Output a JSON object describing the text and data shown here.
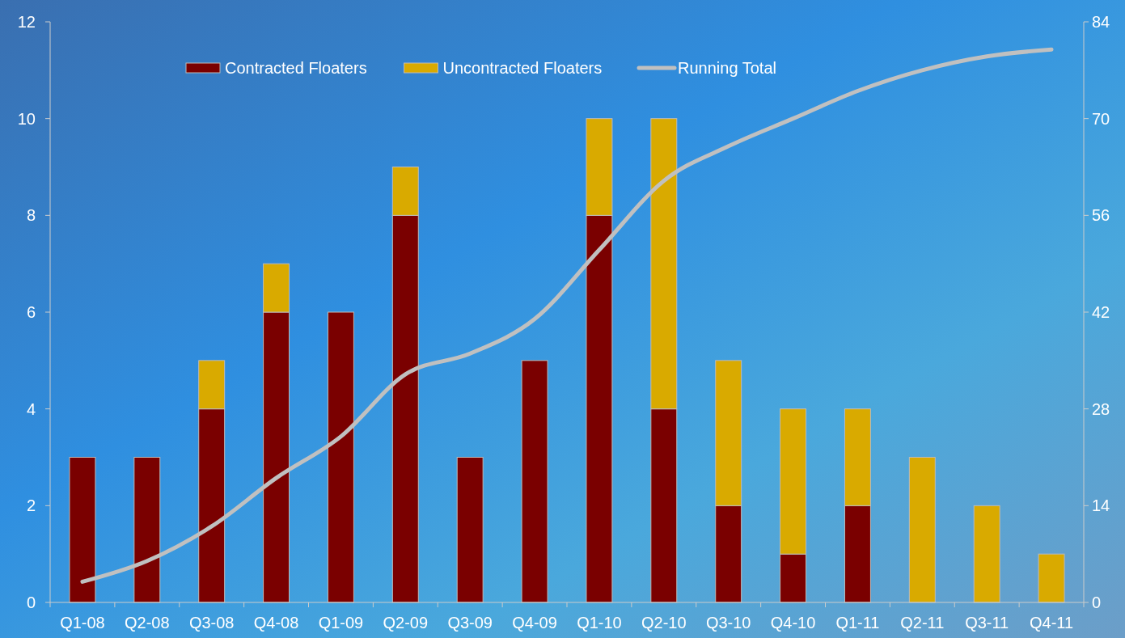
{
  "chart_data": {
    "type": "bar",
    "stacked": true,
    "categories": [
      "Q1-08",
      "Q2-08",
      "Q3-08",
      "Q4-08",
      "Q1-09",
      "Q2-09",
      "Q3-09",
      "Q4-09",
      "Q1-10",
      "Q2-10",
      "Q3-10",
      "Q4-10",
      "Q1-11",
      "Q2-11",
      "Q3-11",
      "Q4-11"
    ],
    "series": [
      {
        "name": "Contracted Floaters",
        "color": "#7a0000",
        "values": [
          3,
          3,
          4,
          6,
          6,
          8,
          3,
          5,
          8,
          4,
          2,
          1,
          2,
          0,
          0,
          0
        ]
      },
      {
        "name": "Uncontracted Floaters",
        "color": "#d9aa00",
        "values": [
          0,
          0,
          1,
          1,
          0,
          1,
          0,
          0,
          2,
          6,
          3,
          3,
          2,
          3,
          2,
          1
        ]
      },
      {
        "name": "Running Total",
        "type": "line",
        "axis": "y2",
        "color": "#c0c0c0",
        "values": [
          3,
          6,
          11,
          18,
          24,
          33,
          36,
          41,
          51,
          61,
          66,
          70,
          74,
          77,
          79,
          80
        ]
      }
    ],
    "ylim": [
      0,
      12
    ],
    "yticks": [
      0,
      2,
      4,
      6,
      8,
      10,
      12
    ],
    "y2lim": [
      0,
      84
    ],
    "y2ticks": [
      0,
      14,
      28,
      42,
      56,
      70,
      84
    ],
    "grid": false,
    "legend": "top",
    "marker": "none",
    "line_style": "solid"
  }
}
